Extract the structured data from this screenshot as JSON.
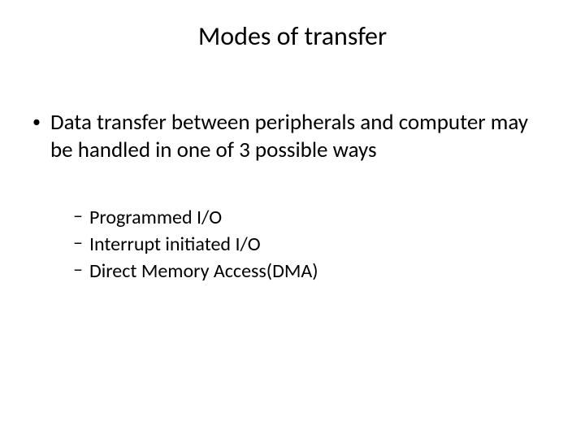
{
  "slide": {
    "title": "Modes of transfer",
    "main_bullet": "Data transfer between peripherals and computer  may be handled in one of 3 possible ways",
    "sub_items": [
      "Programmed I/O",
      "Interrupt initiated I/O",
      "Direct Memory Access(DMA)"
    ]
  },
  "style": {
    "background_color": "#ffffff",
    "text_color": "#000000",
    "title_fontsize": 32,
    "body_fontsize": 27,
    "sub_fontsize": 24,
    "font_family": "Calibri"
  }
}
